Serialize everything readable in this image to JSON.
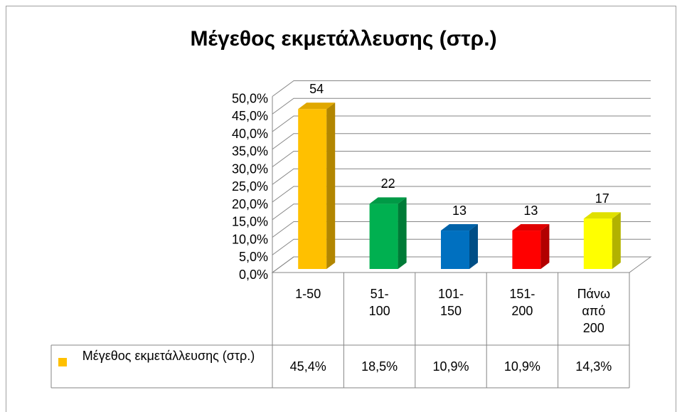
{
  "chart_data": {
    "type": "bar3d",
    "title": "Μέγεθος εκμετάλλευσης (στρ.)",
    "categories": [
      "1-50",
      "51-100",
      "101-150",
      "151-200",
      "Πάνω από 200"
    ],
    "series": [
      {
        "name": "Μέγεθος εκμετάλλευσης (στρ.)",
        "color": "#ffc000",
        "colors": [
          "#ffc000",
          "#00b050",
          "#0070c0",
          "#ff0000",
          "#ffff00"
        ],
        "values": [
          45.4,
          18.5,
          10.9,
          10.9,
          14.3
        ],
        "value_labels": [
          "45,4%",
          "18,5%",
          "10,9%",
          "10,9%",
          "14,3%"
        ],
        "counts": [
          54,
          22,
          13,
          13,
          17
        ]
      }
    ],
    "ylim": [
      0,
      50
    ],
    "yticks": [
      {
        "value": 0,
        "label": "0,0%"
      },
      {
        "value": 5,
        "label": "5,0%"
      },
      {
        "value": 10,
        "label": "10,0%"
      },
      {
        "value": 15,
        "label": "15,0%"
      },
      {
        "value": 20,
        "label": "20,0%"
      },
      {
        "value": 25,
        "label": "25,0%"
      },
      {
        "value": 30,
        "label": "30,0%"
      },
      {
        "value": 35,
        "label": "35,0%"
      },
      {
        "value": 40,
        "label": "40,0%"
      },
      {
        "value": 45,
        "label": "45,0%"
      },
      {
        "value": 50,
        "label": "50,0%"
      }
    ],
    "grid": true
  }
}
